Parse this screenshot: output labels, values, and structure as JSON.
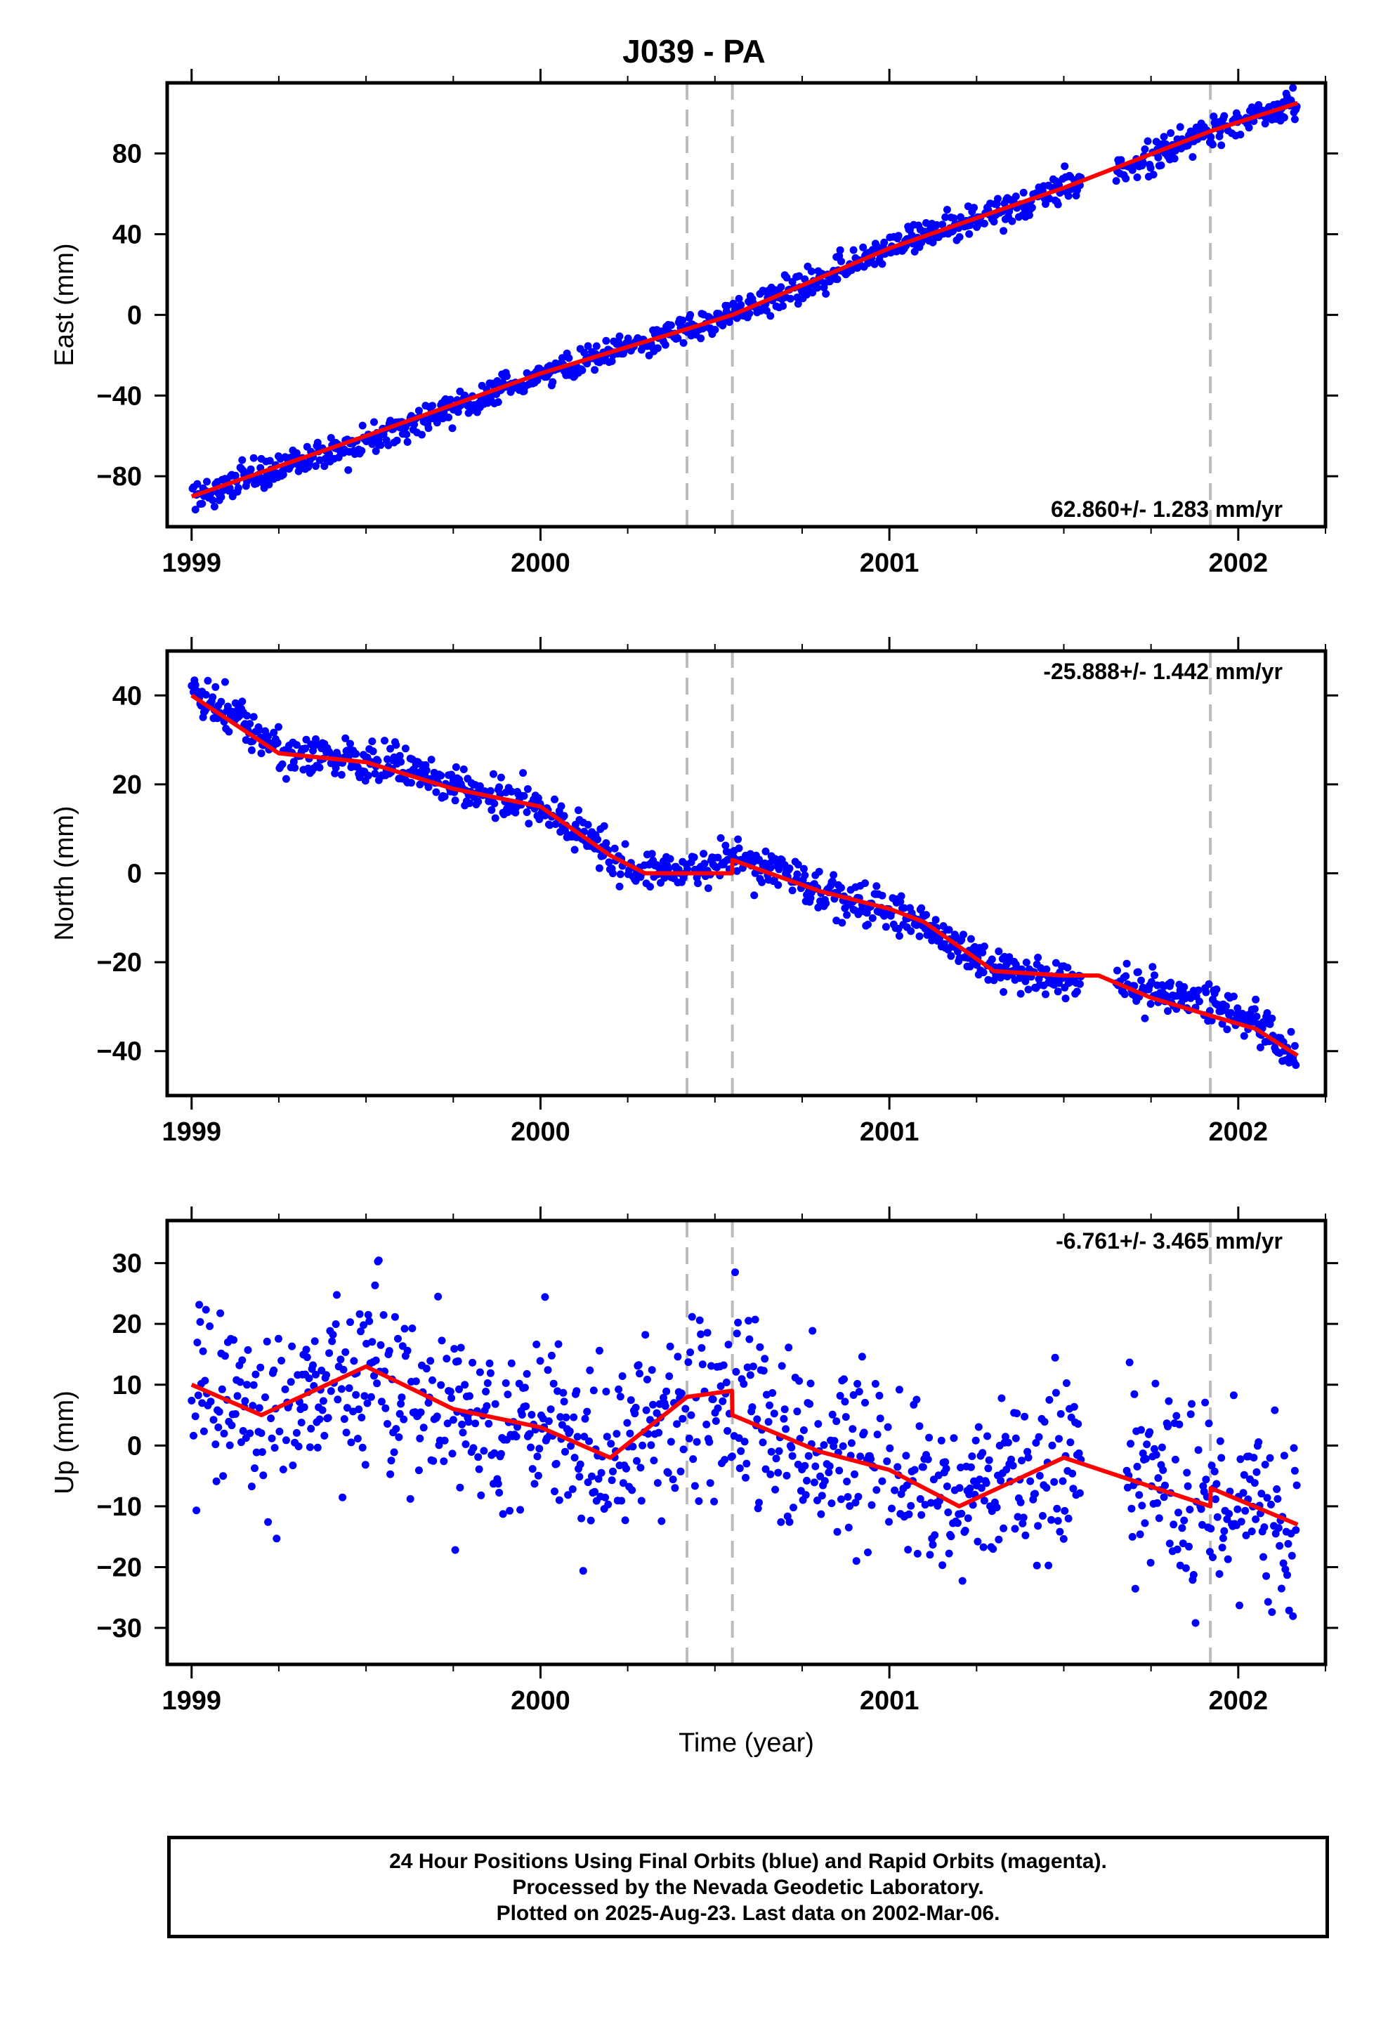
{
  "chart_data": {
    "type": "scatter",
    "title": "J039 - PA",
    "xlabel": "Time (year)",
    "x_ticks": [
      1999,
      2000,
      2001,
      2002
    ],
    "xlim": [
      1998.93,
      2002.25
    ],
    "point_color": "#0000ff",
    "model_color": "#ff0000",
    "break_color": "#bbbbbb",
    "breaks": [
      2000.42,
      2000.55,
      2001.92
    ],
    "panels": [
      {
        "component": "East",
        "ylabel": "East (mm)",
        "ylim": [
          -105,
          115
        ],
        "y_ticks": [
          -80,
          -40,
          0,
          40,
          80
        ],
        "rate": "62.860+/- 1.283 mm/yr",
        "rate_position": "bottom-right",
        "model": {
          "x": [
            1999.0,
            1999.5,
            2000.0,
            2000.42,
            2000.55,
            2001.0,
            2001.5,
            2001.92,
            2002.17
          ],
          "y": [
            -90,
            -60,
            -29,
            -7,
            0,
            33,
            63,
            91,
            105
          ]
        },
        "trend": {
          "x": [
            1999.0,
            1999.3,
            1999.6,
            1999.9,
            2000.2,
            2000.42,
            2000.55,
            2000.8,
            2001.0,
            2001.3,
            2001.5,
            2001.6,
            2001.7,
            2001.92,
            2002.17
          ],
          "y": [
            -90,
            -74,
            -57,
            -36,
            -19,
            -7,
            0,
            17,
            33,
            50,
            63,
            64,
            74,
            91,
            105
          ]
        },
        "noise": 3.5,
        "gaps": [
          [
            2001.55,
            2001.65
          ]
        ]
      },
      {
        "component": "North",
        "ylabel": "North (mm)",
        "ylim": [
          -50,
          50
        ],
        "y_ticks": [
          -40,
          -20,
          0,
          20,
          40
        ],
        "rate": "-25.888+/- 1.442 mm/yr",
        "rate_position": "top-right",
        "model": {
          "x": [
            1999.0,
            1999.25,
            1999.5,
            1999.75,
            2000.0,
            2000.2,
            2000.3,
            2000.42,
            2000.549,
            2000.55,
            2000.8,
            2001.0,
            2001.1,
            2001.3,
            2001.5,
            2001.6,
            2001.75,
            2001.92,
            2002.05,
            2002.17
          ],
          "y": [
            40,
            27,
            25,
            19,
            15,
            4,
            0,
            0,
            0,
            3,
            -4,
            -8,
            -11,
            -22,
            -23,
            -23,
            -28,
            -32,
            -35,
            -41
          ]
        },
        "trend": {
          "x": [
            1999.0,
            1999.1,
            1999.25,
            1999.5,
            1999.6,
            1999.75,
            2000.0,
            2000.2,
            2000.3,
            2000.42,
            2000.55,
            2000.7,
            2000.8,
            2001.0,
            2001.1,
            2001.3,
            2001.5,
            2001.75,
            2001.92,
            2002.05,
            2002.17
          ],
          "y": [
            40,
            37,
            27,
            25,
            25,
            19,
            15,
            4,
            0,
            0,
            3,
            1,
            -4,
            -8,
            -11,
            -22,
            -24,
            -26,
            -30,
            -33,
            -43
          ]
        },
        "noise": 2.2,
        "gaps": [
          [
            2001.55,
            2001.65
          ]
        ]
      },
      {
        "component": "Up",
        "ylabel": "Up (mm)",
        "ylim": [
          -36,
          37
        ],
        "y_ticks": [
          -30,
          -20,
          -10,
          0,
          10,
          20,
          30
        ],
        "rate": "-6.761+/- 3.465 mm/yr",
        "rate_position": "top-right",
        "model": {
          "x": [
            1999.0,
            1999.2,
            1999.5,
            1999.75,
            2000.0,
            2000.2,
            2000.42,
            2000.549,
            2000.55,
            2000.8,
            2001.0,
            2001.2,
            2001.5,
            2001.92,
            2001.921,
            2002.17
          ],
          "y": [
            10,
            5,
            13,
            6,
            3,
            -2,
            8,
            9,
            5,
            -1,
            -4,
            -10,
            -2,
            -10,
            -7,
            -13
          ]
        },
        "trend": {
          "x": [
            1999.0,
            1999.2,
            1999.5,
            1999.75,
            2000.0,
            2000.2,
            2000.42,
            2000.55,
            2000.8,
            2001.0,
            2001.2,
            2001.5,
            2001.92,
            2002.17
          ],
          "y": [
            10,
            5,
            13,
            6,
            3,
            -2,
            8,
            5,
            -1,
            -4,
            -10,
            -2,
            -10,
            -13
          ]
        },
        "noise": 7.5,
        "gaps": [
          [
            2001.55,
            2001.68
          ]
        ]
      }
    ]
  },
  "footer": {
    "line1": "24 Hour Positions Using Final Orbits (blue) and Rapid Orbits (magenta).",
    "line2": "Processed by the Nevada Geodetic Laboratory.",
    "line3": "Plotted on 2025-Aug-23. Last data on 2002-Mar-06."
  }
}
